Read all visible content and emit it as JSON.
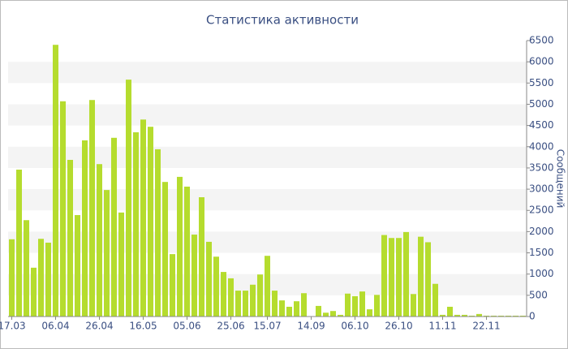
{
  "chart_data": {
    "type": "bar",
    "title": "Статистика активности",
    "y_label": "Сообщений",
    "categories": [
      "17.03",
      null,
      null,
      null,
      null,
      null,
      "06.04",
      null,
      null,
      null,
      null,
      null,
      "26.04",
      null,
      null,
      null,
      null,
      null,
      "16.05",
      null,
      null,
      null,
      null,
      null,
      "05.06",
      null,
      null,
      null,
      null,
      null,
      "25.06",
      null,
      null,
      null,
      null,
      "15.07",
      null,
      null,
      null,
      null,
      null,
      "14.09",
      null,
      null,
      null,
      null,
      null,
      "06.10",
      null,
      null,
      null,
      null,
      null,
      "26.10",
      null,
      null,
      null,
      null,
      null,
      "11.11",
      null,
      null,
      null,
      null,
      null,
      "22.11",
      null,
      null,
      null,
      null,
      null
    ],
    "values": [
      1820,
      3460,
      2270,
      1150,
      1830,
      1740,
      6400,
      5070,
      3690,
      2390,
      4150,
      5100,
      3590,
      2980,
      4210,
      2450,
      5580,
      4340,
      4640,
      4470,
      3940,
      3170,
      1470,
      3290,
      3060,
      1930,
      2810,
      1760,
      1410,
      1050,
      900,
      610,
      610,
      750,
      990,
      1430,
      610,
      380,
      230,
      360,
      550,
      0,
      250,
      90,
      130,
      40,
      540,
      480,
      590,
      170,
      510,
      1920,
      1850,
      1850,
      1990,
      530,
      1880,
      1750,
      770,
      40,
      230,
      40,
      40,
      20,
      60,
      20,
      20,
      20,
      20,
      20,
      20
    ],
    "color": "#b5dc2e",
    "ylim": [
      0,
      6500
    ],
    "yticks": [
      0,
      500,
      1000,
      1500,
      2000,
      2500,
      3000,
      3500,
      4000,
      4500,
      5000,
      5500,
      6000,
      6500
    ],
    "grid": true
  }
}
